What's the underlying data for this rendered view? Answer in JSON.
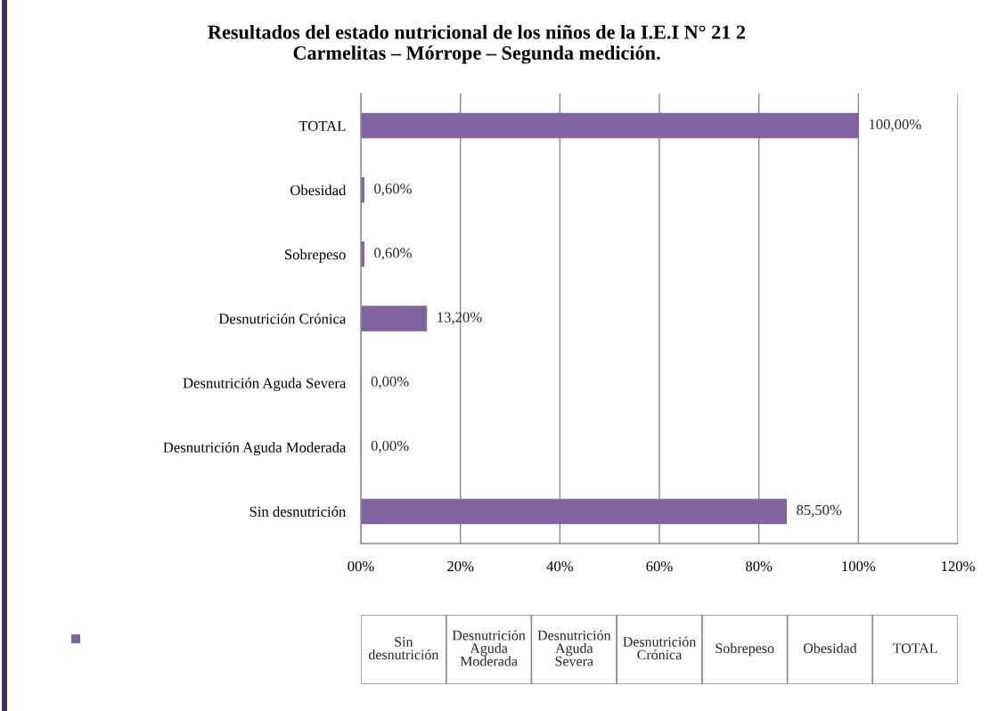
{
  "chart_data": {
    "type": "bar",
    "orientation": "horizontal",
    "title": "Resultados del estado nutricional de los niños de la I.E.I N° 21 2\nCarmelitas – Mórrope – Segunda medición.",
    "categories": [
      "TOTAL",
      "Obesidad",
      "Sobrepeso",
      "Desnutrición Crónica",
      "Desnutrición Aguda Severa",
      "Desnutrición Aguda Moderada",
      "Sin desnutrición"
    ],
    "values": [
      100,
      0.6,
      0.6,
      13.2,
      0,
      0,
      85.5
    ],
    "value_labels": [
      "100,00%",
      "0,60%",
      "0,60%",
      "13,20%",
      "0,00%",
      "0,00%",
      "85,50%"
    ],
    "color": "#8064a2",
    "xlim": [
      0,
      120
    ],
    "xticks": [
      {
        "value": 0,
        "label": "00%"
      },
      {
        "value": 20,
        "label": "20%"
      },
      {
        "value": 40,
        "label": "40%"
      },
      {
        "value": 60,
        "label": "60%"
      },
      {
        "value": 80,
        "label": "80%"
      },
      {
        "value": 100,
        "label": "100%"
      },
      {
        "value": 120,
        "label": "120%"
      }
    ],
    "grid": "x"
  }
}
